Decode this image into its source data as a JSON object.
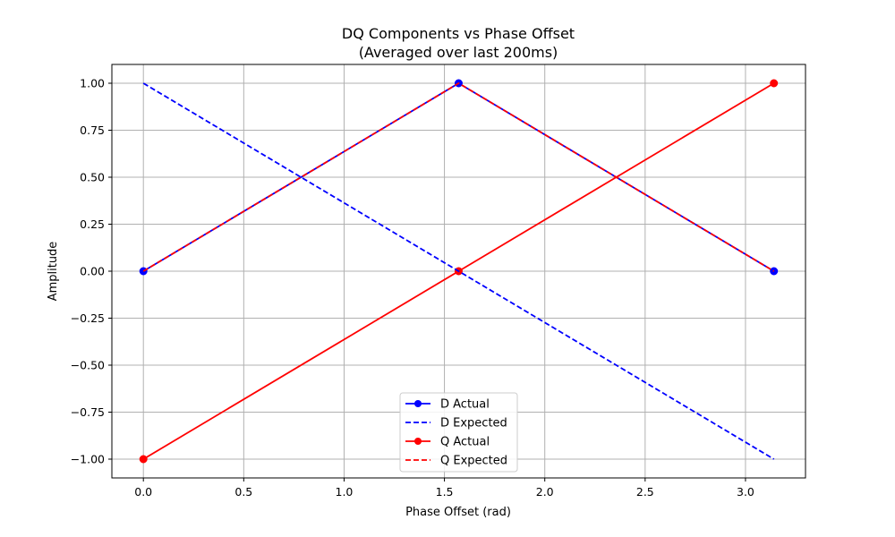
{
  "chart_data": {
    "type": "line",
    "title": "DQ Components vs Phase Offset",
    "subtitle": "(Averaged over last 200ms)",
    "xlabel": "Phase Offset (rad)",
    "ylabel": "Amplitude",
    "xlim": [
      -0.157,
      3.299
    ],
    "ylim": [
      -1.1,
      1.1
    ],
    "xticks": [
      0.0,
      0.5,
      1.0,
      1.5,
      2.0,
      2.5,
      3.0
    ],
    "xtick_labels": [
      "0.0",
      "0.5",
      "1.0",
      "1.5",
      "2.0",
      "2.5",
      "3.0"
    ],
    "yticks": [
      1.0,
      0.75,
      0.5,
      0.25,
      0.0,
      -0.25,
      -0.5,
      -0.75,
      -1.0
    ],
    "ytick_labels": [
      "1.00",
      "0.75",
      "0.50",
      "0.25",
      "0.00",
      "−0.25",
      "−0.50",
      "−0.75",
      "−1.00"
    ],
    "grid": true,
    "legend_position": "lower-center",
    "x": [
      0.0,
      1.5708,
      3.1416
    ],
    "series": [
      {
        "name": "D Actual",
        "values": [
          0.0,
          1.0,
          0.0
        ],
        "color": "#0000ff",
        "style": "solid",
        "marker": "circle"
      },
      {
        "name": "D Expected",
        "values": [
          1.0,
          0.0,
          -1.0
        ],
        "color": "#0000ff",
        "style": "dashed",
        "marker": "none"
      },
      {
        "name": "Q Actual",
        "values": [
          -1.0,
          0.0,
          1.0
        ],
        "color": "#ff0000",
        "style": "solid",
        "marker": "circle"
      },
      {
        "name": "Q Expected",
        "values": [
          0.0,
          1.0,
          0.0
        ],
        "color": "#ff0000",
        "style": "dashed",
        "marker": "none"
      }
    ]
  }
}
